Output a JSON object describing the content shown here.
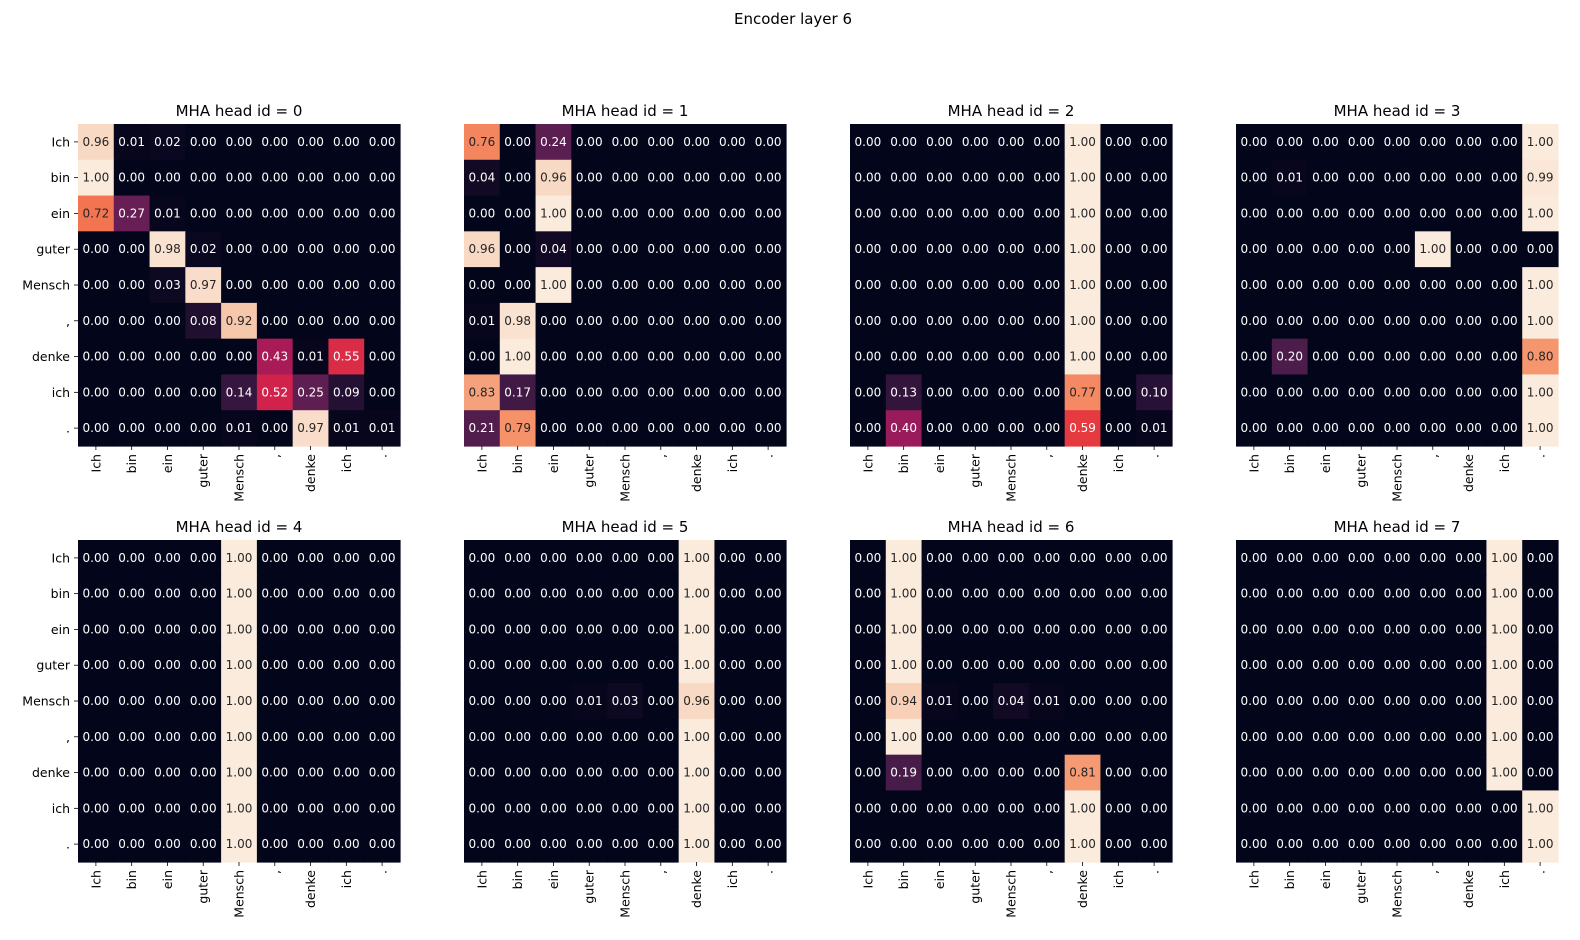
{
  "chart_data": {
    "type": "heatmap",
    "suptitle": "Encoder layer 6",
    "tokens": [
      "Ich",
      "bin",
      "ein",
      "guter",
      "Mensch",
      ",",
      "denke",
      "ich",
      "."
    ],
    "colormap": "rocket",
    "value_format": "0.00",
    "vmin": 0,
    "vmax": 1,
    "heads": [
      {
        "title": "MHA head id = 0",
        "values": [
          [
            0.96,
            0.01,
            0.02,
            0.0,
            0.0,
            0.0,
            0.0,
            0.0,
            0.0
          ],
          [
            1.0,
            0.0,
            0.0,
            0.0,
            0.0,
            0.0,
            0.0,
            0.0,
            0.0
          ],
          [
            0.72,
            0.27,
            0.01,
            0.0,
            0.0,
            0.0,
            0.0,
            0.0,
            0.0
          ],
          [
            0.0,
            0.0,
            0.98,
            0.02,
            0.0,
            0.0,
            0.0,
            0.0,
            0.0
          ],
          [
            0.0,
            0.0,
            0.03,
            0.97,
            0.0,
            0.0,
            0.0,
            0.0,
            0.0
          ],
          [
            0.0,
            0.0,
            0.0,
            0.08,
            0.92,
            0.0,
            0.0,
            0.0,
            0.0
          ],
          [
            0.0,
            0.0,
            0.0,
            0.0,
            0.0,
            0.43,
            0.01,
            0.55,
            0.0
          ],
          [
            0.0,
            0.0,
            0.0,
            0.0,
            0.14,
            0.52,
            0.25,
            0.09,
            0.0
          ],
          [
            0.0,
            0.0,
            0.0,
            0.0,
            0.01,
            0.0,
            0.97,
            0.01,
            0.01
          ]
        ]
      },
      {
        "title": "MHA head id = 1",
        "values": [
          [
            0.76,
            0.0,
            0.24,
            0.0,
            0.0,
            0.0,
            0.0,
            0.0,
            0.0
          ],
          [
            0.04,
            0.0,
            0.96,
            0.0,
            0.0,
            0.0,
            0.0,
            0.0,
            0.0
          ],
          [
            0.0,
            0.0,
            1.0,
            0.0,
            0.0,
            0.0,
            0.0,
            0.0,
            0.0
          ],
          [
            0.96,
            0.0,
            0.04,
            0.0,
            0.0,
            0.0,
            0.0,
            0.0,
            0.0
          ],
          [
            0.0,
            0.0,
            1.0,
            0.0,
            0.0,
            0.0,
            0.0,
            0.0,
            0.0
          ],
          [
            0.01,
            0.98,
            0.0,
            0.0,
            0.0,
            0.0,
            0.0,
            0.0,
            0.0
          ],
          [
            0.0,
            1.0,
            0.0,
            0.0,
            0.0,
            0.0,
            0.0,
            0.0,
            0.0
          ],
          [
            0.83,
            0.17,
            0.0,
            0.0,
            0.0,
            0.0,
            0.0,
            0.0,
            0.0
          ],
          [
            0.21,
            0.79,
            0.0,
            0.0,
            0.0,
            0.0,
            0.0,
            0.0,
            0.0
          ]
        ]
      },
      {
        "title": "MHA head id = 2",
        "values": [
          [
            0.0,
            0.0,
            0.0,
            0.0,
            0.0,
            0.0,
            1.0,
            0.0,
            0.0
          ],
          [
            0.0,
            0.0,
            0.0,
            0.0,
            0.0,
            0.0,
            1.0,
            0.0,
            0.0
          ],
          [
            0.0,
            0.0,
            0.0,
            0.0,
            0.0,
            0.0,
            1.0,
            0.0,
            0.0
          ],
          [
            0.0,
            0.0,
            0.0,
            0.0,
            0.0,
            0.0,
            1.0,
            0.0,
            0.0
          ],
          [
            0.0,
            0.0,
            0.0,
            0.0,
            0.0,
            0.0,
            1.0,
            0.0,
            0.0
          ],
          [
            0.0,
            0.0,
            0.0,
            0.0,
            0.0,
            0.0,
            1.0,
            0.0,
            0.0
          ],
          [
            0.0,
            0.0,
            0.0,
            0.0,
            0.0,
            0.0,
            1.0,
            0.0,
            0.0
          ],
          [
            0.0,
            0.13,
            0.0,
            0.0,
            0.0,
            0.0,
            0.77,
            0.0,
            0.1
          ],
          [
            0.0,
            0.4,
            0.0,
            0.0,
            0.0,
            0.0,
            0.59,
            0.0,
            0.01
          ]
        ]
      },
      {
        "title": "MHA head id = 3",
        "values": [
          [
            0.0,
            0.0,
            0.0,
            0.0,
            0.0,
            0.0,
            0.0,
            0.0,
            1.0
          ],
          [
            0.0,
            0.01,
            0.0,
            0.0,
            0.0,
            0.0,
            0.0,
            0.0,
            0.99
          ],
          [
            0.0,
            0.0,
            0.0,
            0.0,
            0.0,
            0.0,
            0.0,
            0.0,
            1.0
          ],
          [
            0.0,
            0.0,
            0.0,
            0.0,
            0.0,
            1.0,
            0.0,
            0.0,
            0.0
          ],
          [
            0.0,
            0.0,
            0.0,
            0.0,
            0.0,
            0.0,
            0.0,
            0.0,
            1.0
          ],
          [
            0.0,
            0.0,
            0.0,
            0.0,
            0.0,
            0.0,
            0.0,
            0.0,
            1.0
          ],
          [
            0.0,
            0.2,
            0.0,
            0.0,
            0.0,
            0.0,
            0.0,
            0.0,
            0.8
          ],
          [
            0.0,
            0.0,
            0.0,
            0.0,
            0.0,
            0.0,
            0.0,
            0.0,
            1.0
          ],
          [
            0.0,
            0.0,
            0.0,
            0.0,
            0.0,
            0.0,
            0.0,
            0.0,
            1.0
          ]
        ]
      },
      {
        "title": "MHA head id = 4",
        "values": [
          [
            0.0,
            0.0,
            0.0,
            0.0,
            1.0,
            0.0,
            0.0,
            0.0,
            0.0
          ],
          [
            0.0,
            0.0,
            0.0,
            0.0,
            1.0,
            0.0,
            0.0,
            0.0,
            0.0
          ],
          [
            0.0,
            0.0,
            0.0,
            0.0,
            1.0,
            0.0,
            0.0,
            0.0,
            0.0
          ],
          [
            0.0,
            0.0,
            0.0,
            0.0,
            1.0,
            0.0,
            0.0,
            0.0,
            0.0
          ],
          [
            0.0,
            0.0,
            0.0,
            0.0,
            1.0,
            0.0,
            0.0,
            0.0,
            0.0
          ],
          [
            0.0,
            0.0,
            0.0,
            0.0,
            1.0,
            0.0,
            0.0,
            0.0,
            0.0
          ],
          [
            0.0,
            0.0,
            0.0,
            0.0,
            1.0,
            0.0,
            0.0,
            0.0,
            0.0
          ],
          [
            0.0,
            0.0,
            0.0,
            0.0,
            1.0,
            0.0,
            0.0,
            0.0,
            0.0
          ],
          [
            0.0,
            0.0,
            0.0,
            0.0,
            1.0,
            0.0,
            0.0,
            0.0,
            0.0
          ]
        ]
      },
      {
        "title": "MHA head id = 5",
        "values": [
          [
            0.0,
            0.0,
            0.0,
            0.0,
            0.0,
            0.0,
            1.0,
            0.0,
            0.0
          ],
          [
            0.0,
            0.0,
            0.0,
            0.0,
            0.0,
            0.0,
            1.0,
            0.0,
            0.0
          ],
          [
            0.0,
            0.0,
            0.0,
            0.0,
            0.0,
            0.0,
            1.0,
            0.0,
            0.0
          ],
          [
            0.0,
            0.0,
            0.0,
            0.0,
            0.0,
            0.0,
            1.0,
            0.0,
            0.0
          ],
          [
            0.0,
            0.0,
            0.0,
            0.01,
            0.03,
            0.0,
            0.96,
            0.0,
            0.0
          ],
          [
            0.0,
            0.0,
            0.0,
            0.0,
            0.0,
            0.0,
            1.0,
            0.0,
            0.0
          ],
          [
            0.0,
            0.0,
            0.0,
            0.0,
            0.0,
            0.0,
            1.0,
            0.0,
            0.0
          ],
          [
            0.0,
            0.0,
            0.0,
            0.0,
            0.0,
            0.0,
            1.0,
            0.0,
            0.0
          ],
          [
            0.0,
            0.0,
            0.0,
            0.0,
            0.0,
            0.0,
            1.0,
            0.0,
            0.0
          ]
        ]
      },
      {
        "title": "MHA head id = 6",
        "values": [
          [
            0.0,
            1.0,
            0.0,
            0.0,
            0.0,
            0.0,
            0.0,
            0.0,
            0.0
          ],
          [
            0.0,
            1.0,
            0.0,
            0.0,
            0.0,
            0.0,
            0.0,
            0.0,
            0.0
          ],
          [
            0.0,
            1.0,
            0.0,
            0.0,
            0.0,
            0.0,
            0.0,
            0.0,
            0.0
          ],
          [
            0.0,
            1.0,
            0.0,
            0.0,
            0.0,
            0.0,
            0.0,
            0.0,
            0.0
          ],
          [
            0.0,
            0.94,
            0.01,
            0.0,
            0.04,
            0.01,
            0.0,
            0.0,
            0.0
          ],
          [
            0.0,
            1.0,
            0.0,
            0.0,
            0.0,
            0.0,
            0.0,
            0.0,
            0.0
          ],
          [
            0.0,
            0.19,
            0.0,
            0.0,
            0.0,
            0.0,
            0.81,
            0.0,
            0.0
          ],
          [
            0.0,
            0.0,
            0.0,
            0.0,
            0.0,
            0.0,
            1.0,
            0.0,
            0.0
          ],
          [
            0.0,
            0.0,
            0.0,
            0.0,
            0.0,
            0.0,
            1.0,
            0.0,
            0.0
          ]
        ]
      },
      {
        "title": "MHA head id = 7",
        "values": [
          [
            0.0,
            0.0,
            0.0,
            0.0,
            0.0,
            0.0,
            0.0,
            1.0,
            0.0
          ],
          [
            0.0,
            0.0,
            0.0,
            0.0,
            0.0,
            0.0,
            0.0,
            1.0,
            0.0
          ],
          [
            0.0,
            0.0,
            0.0,
            0.0,
            0.0,
            0.0,
            0.0,
            1.0,
            0.0
          ],
          [
            0.0,
            0.0,
            0.0,
            0.0,
            0.0,
            0.0,
            0.0,
            1.0,
            0.0
          ],
          [
            0.0,
            0.0,
            0.0,
            0.0,
            0.0,
            0.0,
            0.0,
            1.0,
            0.0
          ],
          [
            0.0,
            0.0,
            0.0,
            0.0,
            0.0,
            0.0,
            0.0,
            1.0,
            0.0
          ],
          [
            0.0,
            0.0,
            0.0,
            0.0,
            0.0,
            0.0,
            0.0,
            1.0,
            0.0
          ],
          [
            0.0,
            0.0,
            0.0,
            0.0,
            0.0,
            0.0,
            0.0,
            0.0,
            1.0
          ],
          [
            0.0,
            0.0,
            0.0,
            0.0,
            0.0,
            0.0,
            0.0,
            0.0,
            1.0
          ]
        ]
      }
    ]
  }
}
